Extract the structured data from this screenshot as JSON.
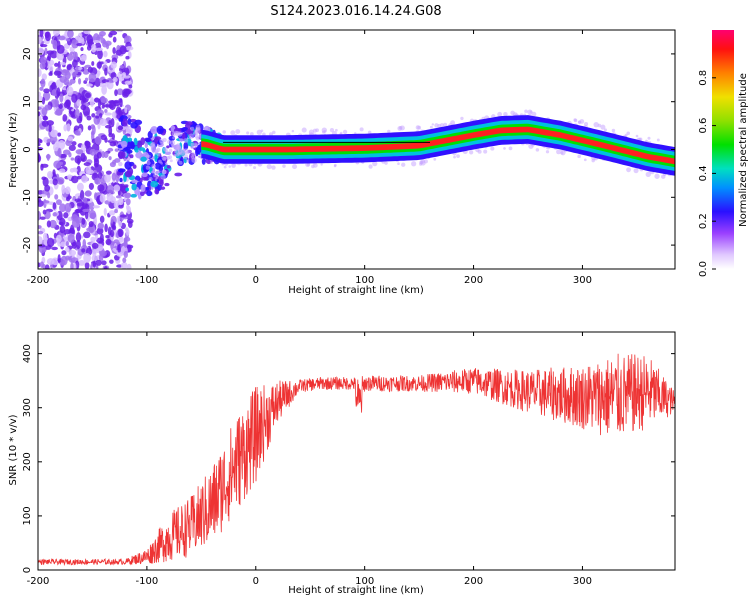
{
  "title": "S124.2023.016.14.24.G08",
  "chart_data": [
    {
      "type": "heatmap",
      "xlabel": "Height of straight line (km)",
      "ylabel": "Frequency (Hz)",
      "xlim": [
        -200,
        385
      ],
      "ylim": [
        -25,
        25
      ],
      "xticks": [
        -200,
        -100,
        0,
        100,
        200,
        300
      ],
      "yticks": [
        -20,
        -10,
        0,
        10,
        20
      ],
      "colorbar": {
        "label": "Normalized spectral amplitude",
        "range": [
          0,
          1
        ],
        "ticks": [
          "0.0",
          "0.2",
          "0.4",
          "0.6",
          "0.8"
        ]
      },
      "ridge": {
        "x": [
          -120,
          -90,
          -60,
          -45,
          -30,
          0,
          30,
          100,
          150,
          200,
          225,
          250,
          280,
          320,
          360,
          385
        ],
        "freq": [
          -1.5,
          -2.5,
          1.5,
          1,
          0,
          0,
          0,
          0.3,
          0.8,
          3,
          4,
          4.2,
          3,
          0.8,
          -1.5,
          -2.5
        ]
      },
      "colors": {
        "low": "#ffffff",
        "mid": "#5000ff",
        "high": "#ff0000"
      }
    },
    {
      "type": "line",
      "xlabel": "Height of straight line (km)",
      "ylabel": "SNR (10 * v/v)",
      "xlim": [
        -200,
        385
      ],
      "ylim": [
        0,
        440
      ],
      "xticks": [
        -200,
        -100,
        0,
        100,
        200,
        300
      ],
      "yticks": [
        0,
        100,
        200,
        300,
        400
      ],
      "series": [
        {
          "color": "#ee3333",
          "envelope_x": [
            -200,
            -120,
            -100,
            -80,
            -60,
            -40,
            -20,
            0,
            20,
            40,
            60,
            90,
            95,
            100,
            150,
            200,
            250,
            300,
            330,
            360,
            385
          ],
          "envelope_y": [
            15,
            15,
            25,
            60,
            80,
            120,
            190,
            250,
            310,
            340,
            345,
            345,
            300,
            345,
            345,
            350,
            330,
            320,
            320,
            330,
            310
          ],
          "noise": [
            5,
            5,
            15,
            45,
            55,
            75,
            90,
            90,
            40,
            12,
            12,
            12,
            60,
            15,
            15,
            25,
            40,
            60,
            80,
            70,
            20
          ]
        }
      ]
    }
  ]
}
